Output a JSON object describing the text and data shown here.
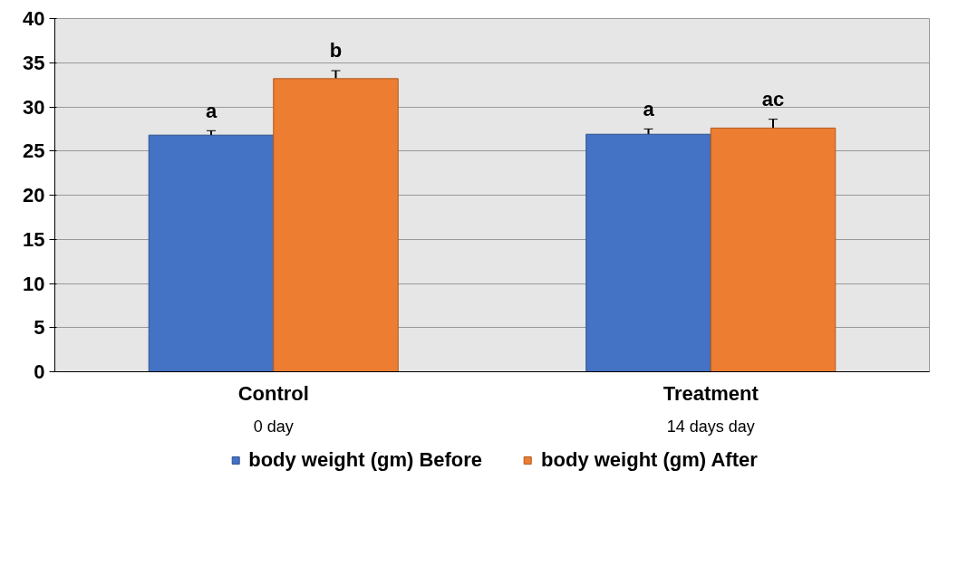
{
  "chart_data": {
    "type": "bar",
    "categories": [
      "Control",
      "Treatment"
    ],
    "series": [
      {
        "name": "body weight (gm) Before",
        "color": "#4472c4",
        "values": [
          26.8,
          26.9
        ],
        "errors": [
          0.5,
          0.6
        ],
        "value_labels": [
          "a",
          "a"
        ]
      },
      {
        "name": "body weight (gm) After",
        "color": "#ed7d31",
        "values": [
          33.2,
          27.6
        ],
        "errors": [
          0.9,
          1.0
        ],
        "value_labels": [
          "b",
          "ac"
        ]
      }
    ],
    "ylim": [
      0,
      40
    ],
    "yticks": [
      0,
      5,
      10,
      15,
      20,
      25,
      30,
      35,
      40
    ],
    "grid": "y",
    "legend": "bottom",
    "annotations": [
      "0 day",
      "14 days day"
    ]
  }
}
